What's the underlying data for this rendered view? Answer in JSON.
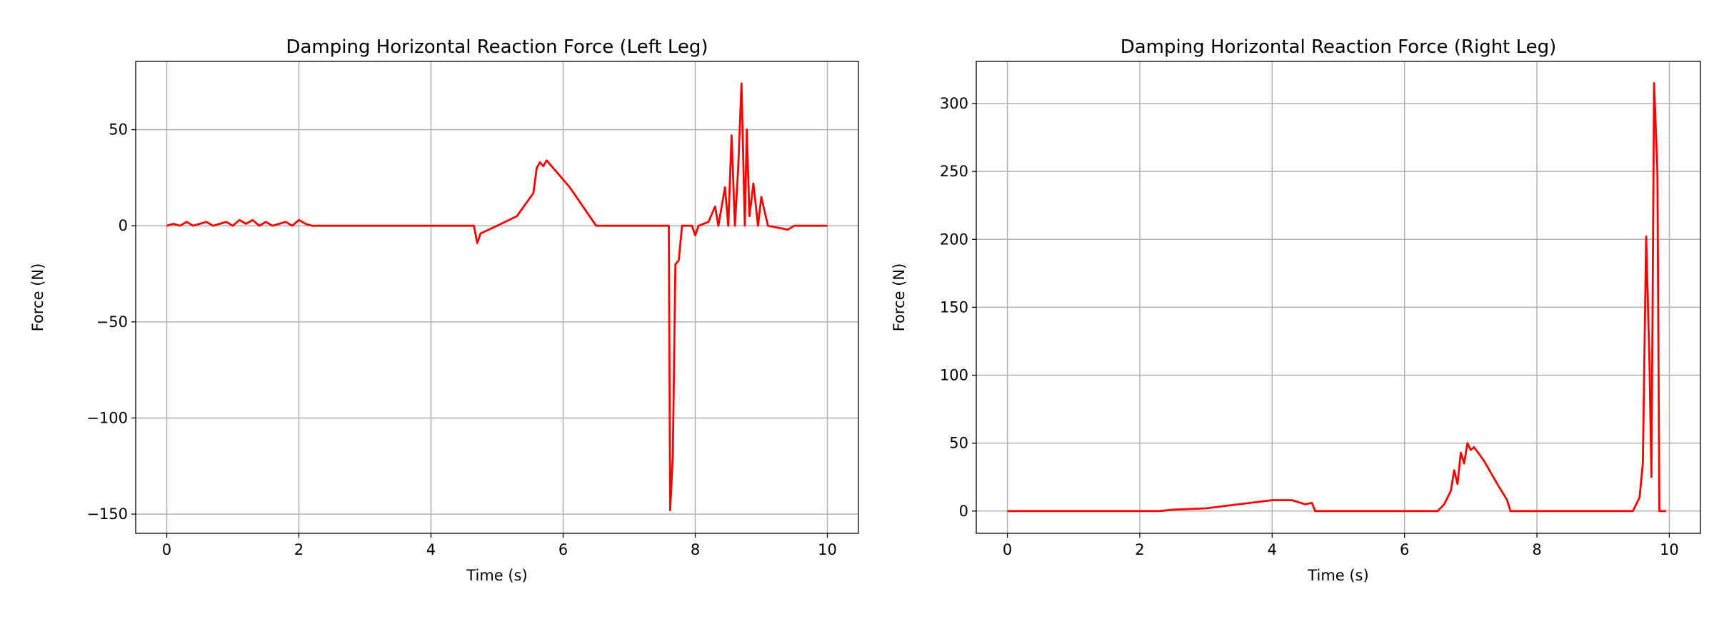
{
  "chart_data": [
    {
      "type": "line",
      "title": "Damping Horizontal Reaction Force (Left Leg)",
      "xlabel": "Time (s)",
      "ylabel": "Force (N)",
      "x": [
        0,
        0.1,
        0.2,
        0.3,
        0.4,
        0.5,
        0.6,
        0.7,
        0.8,
        0.9,
        1.0,
        1.1,
        1.2,
        1.3,
        1.4,
        1.5,
        1.6,
        1.7,
        1.8,
        1.9,
        2.0,
        2.1,
        2.2,
        4.65,
        4.7,
        4.75,
        5.0,
        5.3,
        5.55,
        5.6,
        5.65,
        5.7,
        5.75,
        5.9,
        6.1,
        6.3,
        6.5,
        7.6,
        7.62,
        7.66,
        7.7,
        7.75,
        7.8,
        7.95,
        8.0,
        8.05,
        8.2,
        8.3,
        8.35,
        8.45,
        8.5,
        8.55,
        8.6,
        8.65,
        8.7,
        8.75,
        8.78,
        8.82,
        8.88,
        8.95,
        9.0,
        9.1,
        9.4,
        9.5,
        10
      ],
      "values": [
        0,
        1,
        0,
        2,
        0,
        1,
        2,
        0,
        1,
        2,
        0,
        3,
        1,
        3,
        0,
        2,
        0,
        1,
        2,
        0,
        3,
        1,
        0,
        0,
        -9,
        -4,
        0,
        5,
        17,
        30,
        33,
        31,
        34,
        28,
        20,
        10,
        0,
        0,
        -148,
        -120,
        -20,
        -18,
        0,
        0,
        -5,
        0,
        2,
        10,
        0,
        20,
        0,
        47,
        0,
        30,
        74,
        0,
        50,
        5,
        22,
        0,
        15,
        0,
        -2,
        0,
        0
      ],
      "color": "#ff0000",
      "xlim": [
        -0.47,
        10.47
      ],
      "ylim": [
        -160,
        85.5
      ],
      "xticks": [
        0,
        2,
        4,
        6,
        8,
        10
      ],
      "yticks": [
        {
          "value": -150,
          "label": "−150"
        },
        {
          "value": -100,
          "label": "−100"
        },
        {
          "value": -50,
          "label": "−50"
        },
        0,
        50
      ],
      "grid": true
    },
    {
      "type": "line",
      "title": "Damping Horizontal Reaction Force (Right Leg)",
      "xlabel": "Time (s)",
      "ylabel": "Force (N)",
      "x": [
        0,
        2.3,
        2.5,
        3.0,
        3.5,
        4.0,
        4.3,
        4.5,
        4.6,
        4.65,
        6.5,
        6.6,
        6.7,
        6.75,
        6.8,
        6.85,
        6.9,
        6.95,
        7.0,
        7.05,
        7.2,
        7.4,
        7.55,
        7.6,
        9.45,
        9.55,
        9.6,
        9.65,
        9.7,
        9.73,
        9.77,
        9.82,
        9.85,
        9.95
      ],
      "values": [
        0,
        0,
        1,
        2,
        5,
        8,
        8,
        5,
        6,
        0,
        0,
        5,
        15,
        30,
        20,
        43,
        35,
        50,
        45,
        47,
        37,
        20,
        8,
        0,
        0,
        10,
        35,
        202,
        110,
        25,
        315,
        250,
        0,
        0
      ],
      "color": "#ff0000",
      "xlim": [
        -0.47,
        10.47
      ],
      "ylim": [
        -16.4,
        331
      ],
      "xticks": [
        0,
        2,
        4,
        6,
        8,
        10
      ],
      "yticks": [
        0,
        50,
        100,
        150,
        200,
        250,
        300
      ],
      "grid": true
    }
  ]
}
